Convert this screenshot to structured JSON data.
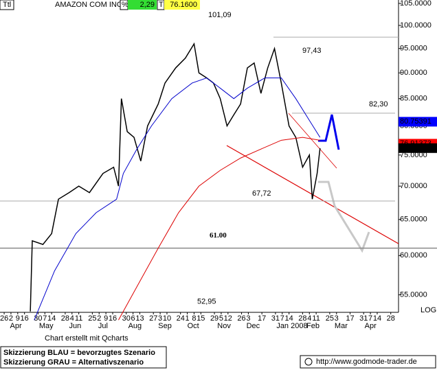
{
  "header": {
    "ttl": "Ttl",
    "symbol": "AMAZON COM INC",
    "pct_label": "%",
    "change": "2,29",
    "last_label": "T",
    "last": "76.1600"
  },
  "chart_data": {
    "type": "line",
    "log_scale": true,
    "scale_label": "LOG",
    "xlim": [
      -4.3,
      407
    ],
    "ylim": [
      52.9,
      105.8
    ],
    "yticks": [
      {
        "value": 55,
        "label": "55.0000"
      },
      {
        "value": 60,
        "label": "60.0000"
      },
      {
        "value": 65,
        "label": "65.0000"
      },
      {
        "value": 70,
        "label": "70.0000"
      },
      {
        "value": 75,
        "label": "75.0000"
      },
      {
        "value": 80,
        "label": "80.0000"
      },
      {
        "value": 85,
        "label": "85.0000"
      },
      {
        "value": 90,
        "label": "90.0000"
      },
      {
        "value": 95,
        "label": "95.0000"
      },
      {
        "value": 100,
        "label": "100.0000"
      },
      {
        "value": 105,
        "label": "105.0000"
      }
    ],
    "xticks": [
      {
        "value": 0,
        "label": "26"
      },
      {
        "value": 7,
        "label": "2"
      },
      {
        "value": 14,
        "label": "9"
      },
      {
        "value": 21,
        "label": "16"
      },
      {
        "value": 35,
        "label": "30"
      },
      {
        "value": 42,
        "label": "7"
      },
      {
        "value": 49,
        "label": "14"
      },
      {
        "value": 63,
        "label": "28"
      },
      {
        "value": 70,
        "label": "4"
      },
      {
        "value": 77,
        "label": "11"
      },
      {
        "value": 91,
        "label": "25"
      },
      {
        "value": 98,
        "label": "2"
      },
      {
        "value": 105,
        "label": "9"
      },
      {
        "value": 112,
        "label": "16"
      },
      {
        "value": 126,
        "label": "30"
      },
      {
        "value": 133,
        "label": "6"
      },
      {
        "value": 140,
        "label": "13"
      },
      {
        "value": 154,
        "label": "27"
      },
      {
        "value": 161,
        "label": "3"
      },
      {
        "value": 168,
        "label": "10"
      },
      {
        "value": 182,
        "label": "24"
      },
      {
        "value": 189,
        "label": "1"
      },
      {
        "value": 196,
        "label": "8"
      },
      {
        "value": 203,
        "label": "15"
      },
      {
        "value": 217,
        "label": "29"
      },
      {
        "value": 224,
        "label": "5"
      },
      {
        "value": 231,
        "label": "12"
      },
      {
        "value": 245,
        "label": "26"
      },
      {
        "value": 252,
        "label": "3"
      },
      {
        "value": 266,
        "label": "17"
      },
      {
        "value": 280,
        "label": "31"
      },
      {
        "value": 287,
        "label": "7"
      },
      {
        "value": 294,
        "label": "14"
      },
      {
        "value": 308,
        "label": "28"
      },
      {
        "value": 315,
        "label": "4"
      },
      {
        "value": 322,
        "label": "11"
      },
      {
        "value": 336,
        "label": "25"
      },
      {
        "value": 343,
        "label": "3"
      },
      {
        "value": 357,
        "label": "17"
      },
      {
        "value": 371,
        "label": "31"
      },
      {
        "value": 378,
        "label": "7"
      },
      {
        "value": 385,
        "label": "14"
      },
      {
        "value": 399,
        "label": "28"
      }
    ],
    "month_labels": [
      {
        "value": 6,
        "label": "Apr"
      },
      {
        "value": 36,
        "label": "May"
      },
      {
        "value": 67,
        "label": "Jun"
      },
      {
        "value": 97,
        "label": "Jul"
      },
      {
        "value": 128,
        "label": "Aug"
      },
      {
        "value": 159,
        "label": "Sep"
      },
      {
        "value": 189,
        "label": "Oct"
      },
      {
        "value": 220,
        "label": "Nov"
      },
      {
        "value": 250,
        "label": "Dec"
      },
      {
        "value": 281,
        "label": "Jan 2008"
      },
      {
        "value": 312,
        "label": "Feb"
      },
      {
        "value": 341,
        "label": "Mar"
      },
      {
        "value": 372,
        "label": "Apr"
      }
    ],
    "series": [
      {
        "color": "#000000",
        "x": [
          27,
          29,
          40,
          49,
          56,
          67,
          77,
          88,
          102,
          113,
          118,
          121,
          127,
          134,
          141,
          148,
          159,
          166,
          177,
          187,
          196,
          201,
          209,
          216,
          223,
          230,
          237,
          244,
          251,
          258,
          265,
          272,
          279,
          286,
          294,
          301,
          308,
          315,
          318,
          323,
          326
        ],
        "values": [
          53,
          62,
          61.5,
          63,
          68,
          69,
          70,
          69,
          72,
          73,
          70,
          85,
          79,
          78,
          74,
          80,
          84,
          88,
          91,
          93,
          96,
          90,
          89,
          88,
          85,
          80,
          82,
          84,
          91,
          92,
          86,
          91,
          95,
          88,
          80,
          78,
          73,
          75,
          68,
          72,
          76.16
        ]
      },
      {
        "color": "#0000cc",
        "x": [
          31,
          52,
          74,
          95,
          116,
          123,
          137,
          152,
          173,
          194,
          209,
          223,
          237,
          251,
          269,
          286,
          301,
          315,
          326
        ],
        "values": [
          52,
          58,
          63,
          66,
          68,
          72,
          76,
          80,
          85,
          88,
          89,
          87,
          85,
          87,
          89,
          89,
          85,
          81,
          78
        ]
      },
      {
        "color": "#dd0000",
        "x": [
          118,
          137,
          159,
          180,
          201,
          223,
          244,
          265,
          286,
          308,
          326
        ],
        "values": [
          52,
          56,
          61,
          66,
          70,
          72.5,
          74.5,
          76,
          77.5,
          78,
          77.5
        ]
      }
    ],
    "levels": [
      {
        "value": 101.09,
        "label": "101,09"
      },
      {
        "value": 97.43,
        "label": "97,43"
      },
      {
        "value": 82.3,
        "label": "82,30"
      },
      {
        "value": 67.72,
        "label": "67,72"
      },
      {
        "value": 61,
        "label": "61.00"
      },
      {
        "value": 52.95,
        "label": "52,95"
      }
    ],
    "price_tags": [
      {
        "value": 80.75391,
        "color": "#0000ff"
      },
      {
        "value": 76.91373,
        "color": "#ff0000"
      },
      {
        "value": 76.16,
        "label": "76.1600",
        "color": "#000000"
      }
    ]
  },
  "footer": {
    "credit": "Chart erstellt mit Qcharts",
    "legend": [
      "Skizzierung BLAU = bevorzugtes Szenario",
      "Skizzierung GRAU = Alternativszenario"
    ],
    "url": "http://www.godmode-trader.de"
  }
}
